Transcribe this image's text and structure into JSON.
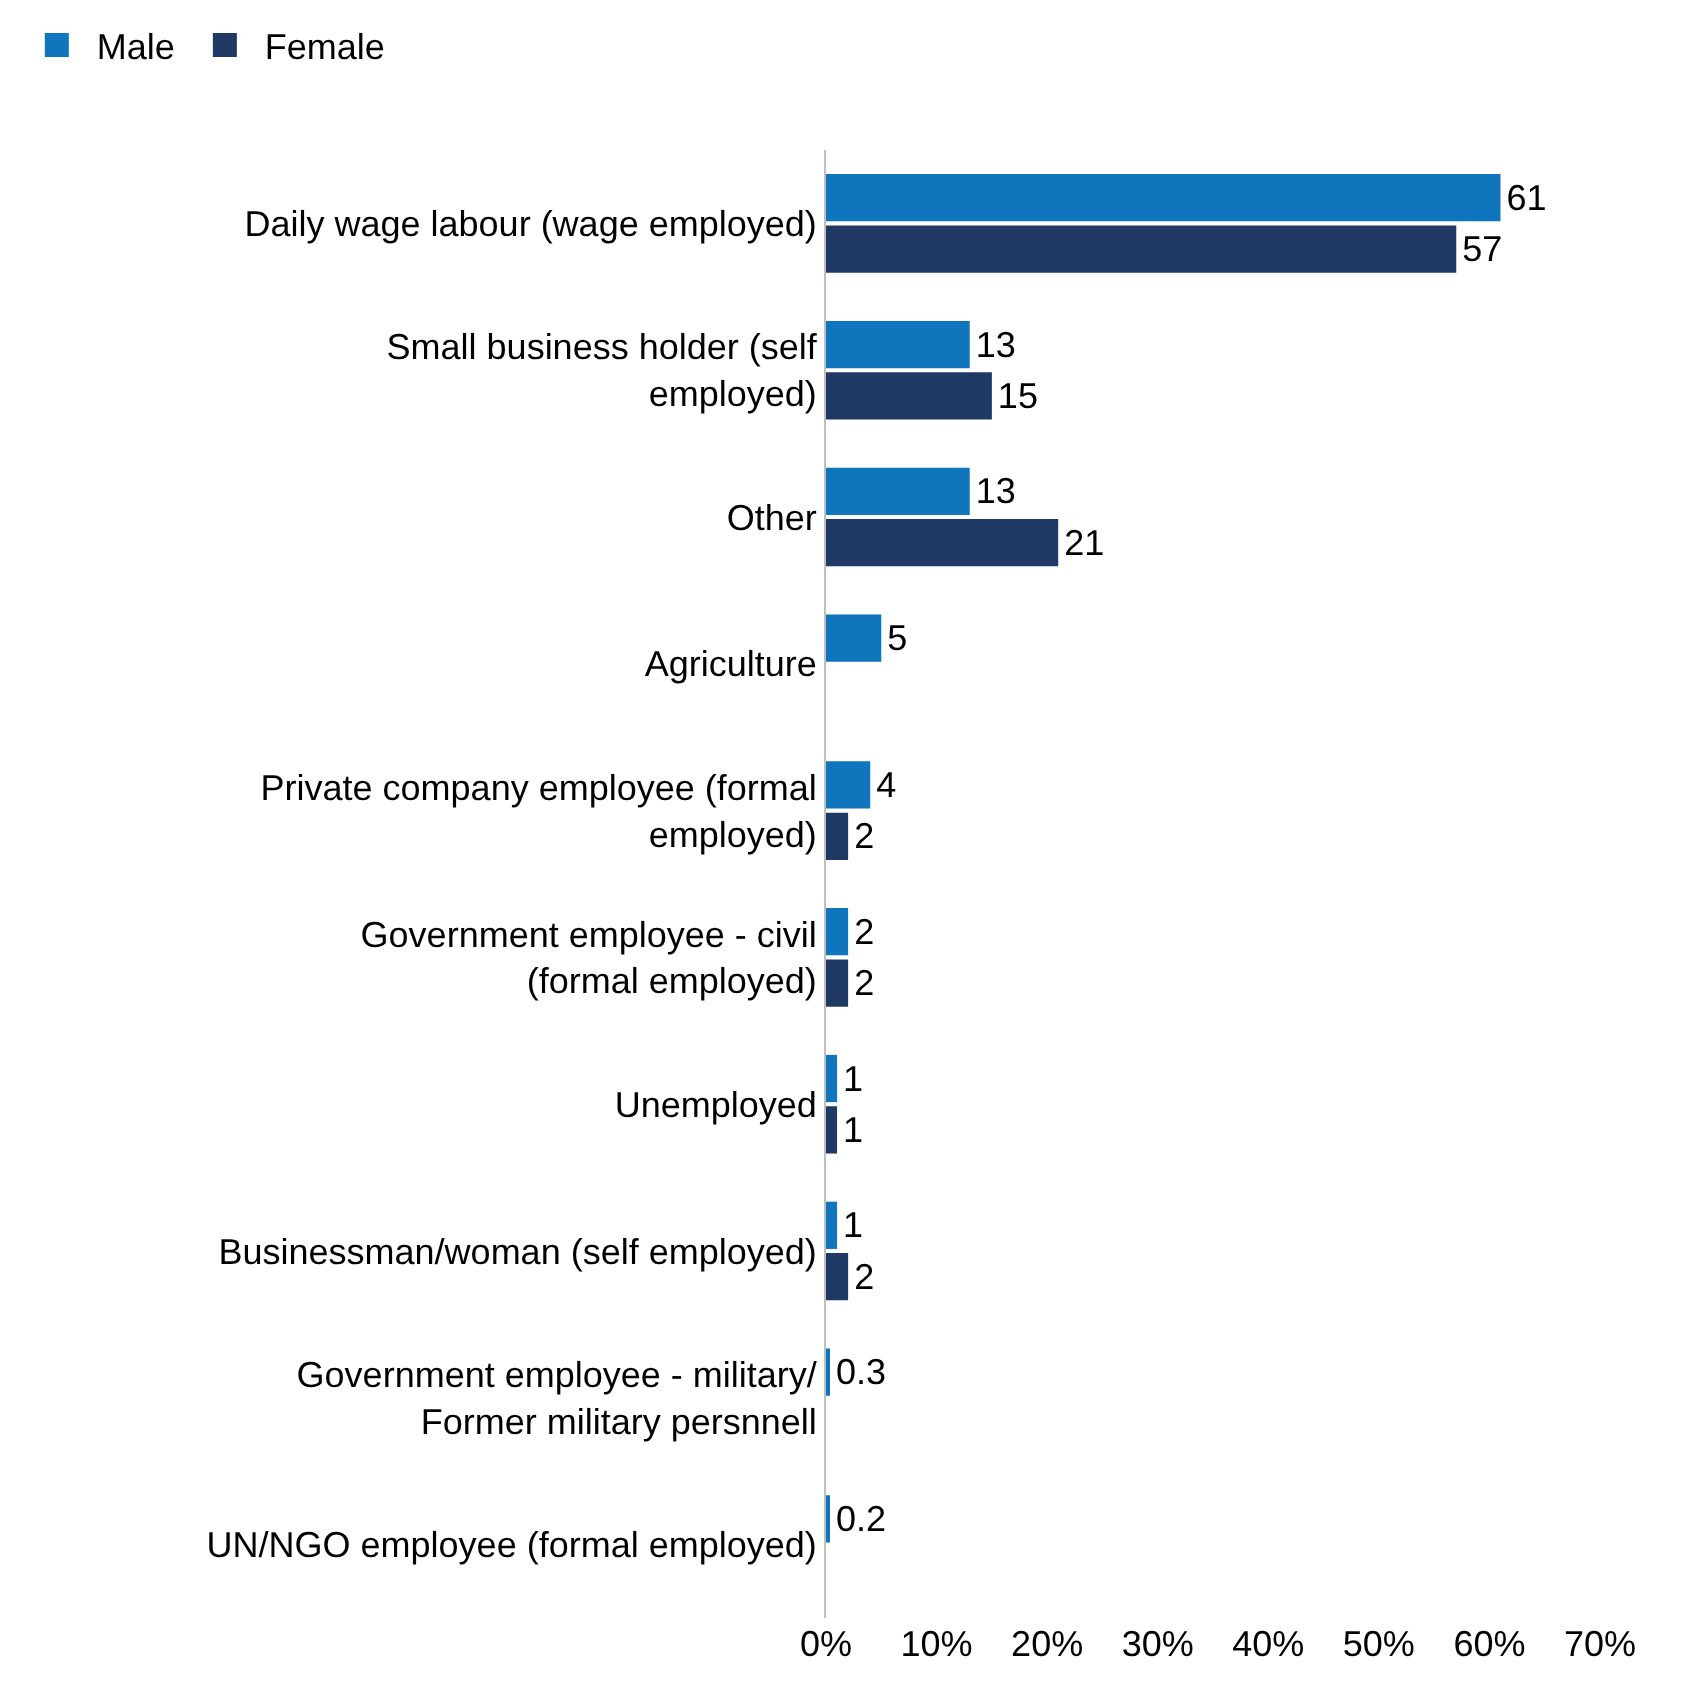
{
  "chart_data": {
    "type": "bar",
    "orientation": "horizontal",
    "categories": [
      "Daily wage labour (wage employed)",
      "Small business holder (self employed)",
      "Other",
      "Agriculture",
      "Private company employee (formal employed)",
      "Government employee - civil (formal employed)",
      "Unemployed",
      "Businessman/woman (self employed)",
      "Government employee - military/ Former military persnnell",
      "UN/NGO employee (formal employed)"
    ],
    "series": [
      {
        "name": "Male",
        "color": "#0f75bd",
        "values": [
          61,
          13,
          13,
          5,
          4,
          2,
          1,
          1,
          0.3,
          0.2
        ]
      },
      {
        "name": "Female",
        "color": "#1f3864",
        "values": [
          57,
          15,
          21,
          null,
          2,
          2,
          1,
          2,
          null,
          null
        ]
      }
    ],
    "xlim": [
      0,
      70
    ],
    "xticks": [
      {
        "value": 0,
        "label": "0%"
      },
      {
        "value": 10,
        "label": "10%"
      },
      {
        "value": 20,
        "label": "20%"
      },
      {
        "value": 30,
        "label": "30%"
      },
      {
        "value": 40,
        "label": "40%"
      },
      {
        "value": 50,
        "label": "50%"
      },
      {
        "value": 60,
        "label": "60%"
      },
      {
        "value": 70,
        "label": "70%"
      }
    ],
    "data_labels": true,
    "legend": "top left",
    "grid": false
  }
}
